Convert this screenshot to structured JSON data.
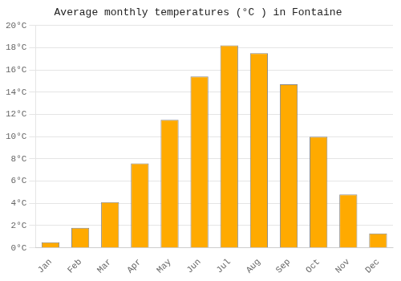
{
  "chart_data": {
    "type": "bar",
    "title": "Average monthly temperatures (°C ) in Fontaine",
    "categories": [
      "Jan",
      "Feb",
      "Mar",
      "Apr",
      "May",
      "Jun",
      "Jul",
      "Aug",
      "Sep",
      "Oct",
      "Nov",
      "Dec"
    ],
    "values": [
      0.5,
      1.8,
      4.1,
      7.6,
      11.5,
      15.4,
      18.2,
      17.5,
      14.7,
      10.0,
      4.8,
      1.3
    ],
    "color": "#FFAA00",
    "ylim": [
      0,
      20
    ],
    "yticks": [
      {
        "value": 0,
        "label": "0°C"
      },
      {
        "value": 2,
        "label": "2°C"
      },
      {
        "value": 4,
        "label": "4°C"
      },
      {
        "value": 6,
        "label": "6°C"
      },
      {
        "value": 8,
        "label": "8°C"
      },
      {
        "value": 10,
        "label": "10°C"
      },
      {
        "value": 12,
        "label": "12°C"
      },
      {
        "value": 14,
        "label": "14°C"
      },
      {
        "value": 16,
        "label": "16°C"
      },
      {
        "value": 18,
        "label": "18°C"
      },
      {
        "value": 20,
        "label": "20°C"
      }
    ],
    "grid": true
  }
}
